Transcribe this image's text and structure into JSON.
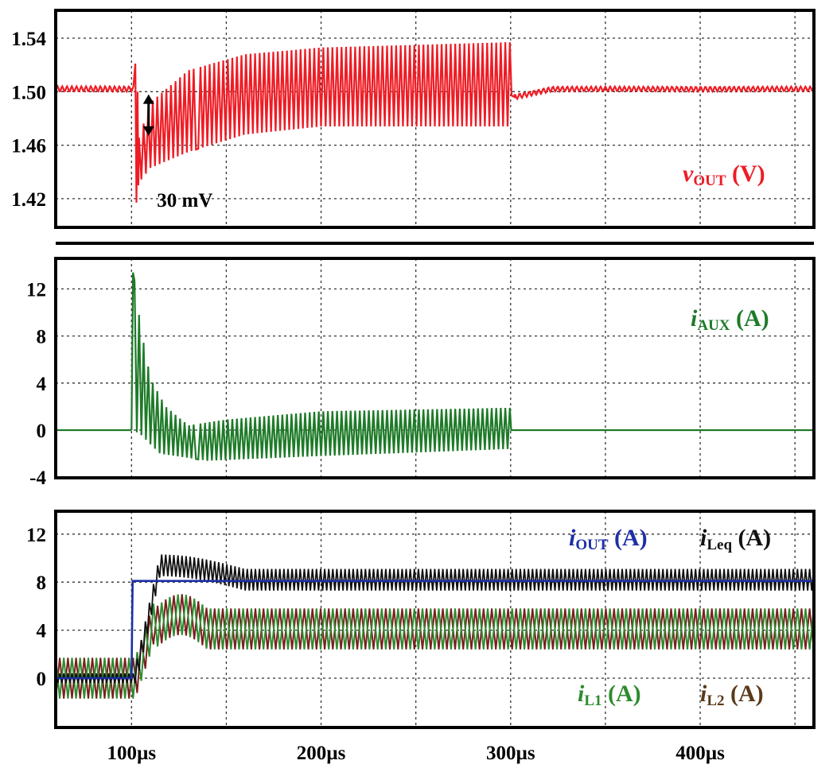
{
  "chart_data": [
    {
      "type": "line",
      "panel": "top",
      "x_range_us": [
        60,
        460
      ],
      "ylim": [
        1.4,
        1.56
      ],
      "yticks": [
        {
          "value": 1.54,
          "label": "1.54"
        },
        {
          "value": 1.5,
          "label": "1.50"
        },
        {
          "value": 1.46,
          "label": "1.46"
        },
        {
          "value": 1.42,
          "label": "1.42"
        }
      ],
      "series": [
        {
          "name": "v",
          "name_sub": "OUT",
          "unit": "(V)",
          "color": "#ee1c25",
          "steady_before": 1.502,
          "ripple_before": 0.002,
          "step_time_us": 100,
          "release_time_us": 300,
          "min_spike": 1.417,
          "max_spike": 1.521,
          "envelope_upper": [
            [
              100,
              1.448
            ],
            [
              110,
              1.492
            ],
            [
              130,
              1.516
            ],
            [
              160,
              1.528
            ],
            [
              200,
              1.533
            ],
            [
              300,
              1.537
            ]
          ],
          "envelope_lower": [
            [
              100,
              1.425
            ],
            [
              110,
              1.443
            ],
            [
              130,
              1.455
            ],
            [
              160,
              1.468
            ],
            [
              200,
              1.474
            ],
            [
              300,
              1.474
            ]
          ],
          "after_release_level": 1.502
        }
      ],
      "annotations": [
        {
          "text": "30 mV",
          "x_us": 100,
          "y": 1.42,
          "arrow_from": 1.498,
          "arrow_to": 1.467,
          "arrow_x_us": 109
        }
      ]
    },
    {
      "type": "line",
      "panel": "middle",
      "x_range_us": [
        60,
        460
      ],
      "ylim": [
        -4,
        14
      ],
      "yticks": [
        {
          "value": 12,
          "label": "12"
        },
        {
          "value": 8,
          "label": "8"
        },
        {
          "value": 4,
          "label": "4"
        },
        {
          "value": 0,
          "label": "0"
        },
        {
          "value": -4,
          "label": "-4"
        }
      ],
      "series": [
        {
          "name": "i",
          "name_sub": "AUX",
          "unit": "(A)",
          "color": "#1e7a28",
          "baseline": 0,
          "step_time_us": 100,
          "release_time_us": 300,
          "peak": 13.4,
          "envelope_upper": [
            [
              101,
              13.4
            ],
            [
              105,
              8.6
            ],
            [
              110,
              4.4
            ],
            [
              118,
              2.0
            ],
            [
              130,
              0.4
            ],
            [
              150,
              0.9
            ],
            [
              200,
              1.6
            ],
            [
              300,
              1.9
            ]
          ],
          "envelope_lower": [
            [
              101,
              0
            ],
            [
              105,
              -0.4
            ],
            [
              115,
              -2.0
            ],
            [
              140,
              -2.6
            ],
            [
              200,
              -2.2
            ],
            [
              300,
              -1.6
            ]
          ]
        }
      ]
    },
    {
      "type": "line",
      "panel": "bottom",
      "x_range_us": [
        60,
        460
      ],
      "ylim": [
        -4,
        14
      ],
      "yticks": [
        {
          "value": 12,
          "label": "12"
        },
        {
          "value": 8,
          "label": "8"
        },
        {
          "value": 4,
          "label": "4"
        },
        {
          "value": 0,
          "label": "0"
        }
      ],
      "xticks": [
        {
          "value": 100,
          "label": "100µs"
        },
        {
          "value": 200,
          "label": "200µs"
        },
        {
          "value": 300,
          "label": "300µs"
        },
        {
          "value": 400,
          "label": "400µs"
        }
      ],
      "series": [
        {
          "name": "i",
          "name_sub": "OUT",
          "unit": "(A)",
          "color": "#1c2fa8",
          "before": 0,
          "after": 8.1,
          "step_time_us": 100
        },
        {
          "name": "i",
          "name_sub": "Leq",
          "unit": "(A)",
          "color": "#111111",
          "before": 0,
          "after": 8.2,
          "overshoot": 10.0,
          "ripple": 0.9
        },
        {
          "name": "i",
          "name_sub": "L1",
          "unit": "(A)",
          "color": "#2e8b2e",
          "before": 0,
          "after": 4.1,
          "overshoot": 6.2,
          "ripple": 1.7
        },
        {
          "name": "i",
          "name_sub": "L2",
          "unit": "(A)",
          "color": "#7a1f1f",
          "before": 0,
          "after": 4.1,
          "overshoot": 6.2,
          "ripple": 1.7
        }
      ]
    }
  ],
  "colors": {
    "vout": "#ee1c25",
    "iaux": "#1e7a28",
    "iout": "#1c2fa8",
    "ileq": "#111111",
    "il1": "#2e8b2e",
    "il2": "#7a1f1f",
    "iL2_label": "#5a3a1a"
  }
}
